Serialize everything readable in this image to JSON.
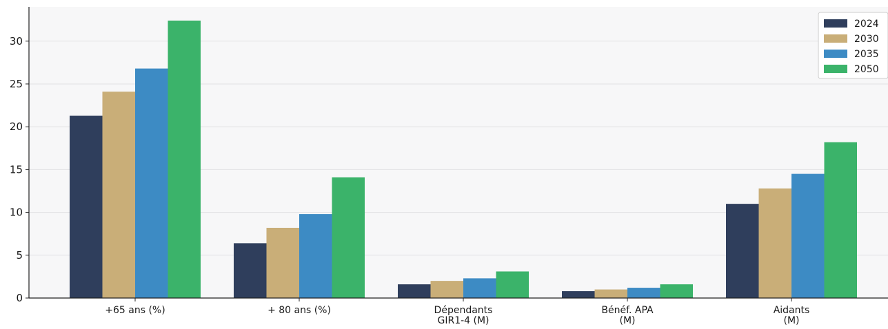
{
  "chart_data": {
    "type": "bar",
    "title": "",
    "xlabel": "",
    "ylabel": "",
    "ylim": [
      0,
      34
    ],
    "yticks": [
      0,
      5,
      10,
      15,
      20,
      25,
      30
    ],
    "categories": [
      "+65 ans (%)",
      "+ 80 ans (%)",
      "Dépendants\nGIR1-4 (M)",
      "Bénéf. APA\n(M)",
      "Aidants\n(M)"
    ],
    "series": [
      {
        "name": "2024",
        "color": "#2f3e5c",
        "values": [
          21.3,
          6.4,
          1.6,
          0.8,
          11.0
        ]
      },
      {
        "name": "2030",
        "color": "#c9ae78",
        "values": [
          24.1,
          8.2,
          2.0,
          1.0,
          12.8
        ]
      },
      {
        "name": "2035",
        "color": "#3d8bc4",
        "values": [
          26.8,
          9.8,
          2.3,
          1.2,
          14.5
        ]
      },
      {
        "name": "2050",
        "color": "#3bb36a",
        "values": [
          32.4,
          14.1,
          3.1,
          1.6,
          18.2
        ]
      }
    ],
    "legend_position": "top-right",
    "grid": "horizontal",
    "background": "#f7f7f8"
  }
}
